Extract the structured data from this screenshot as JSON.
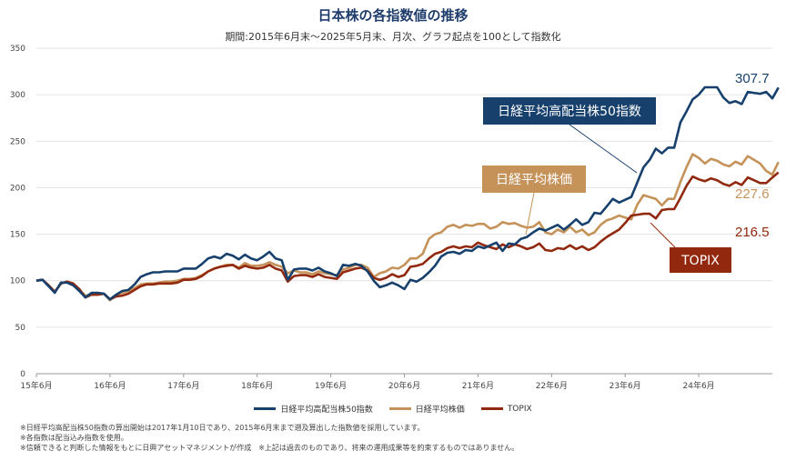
{
  "chart_data": {
    "type": "line",
    "title": "日本株の各指数値の推移",
    "subtitle": "期間:2015年6月末～2025年5月末、月次、グラフ起点を100として指数化",
    "ylim": [
      0,
      350
    ],
    "yticks": [
      0,
      50,
      100,
      150,
      200,
      250,
      300,
      350
    ],
    "xlim": [
      0,
      120
    ],
    "xticks": [
      {
        "pos": 0,
        "label": "15年6月"
      },
      {
        "pos": 12,
        "label": "16年6月"
      },
      {
        "pos": 24,
        "label": "17年6月"
      },
      {
        "pos": 36,
        "label": "18年6月"
      },
      {
        "pos": 48,
        "label": "19年6月"
      },
      {
        "pos": 60,
        "label": "20年6月"
      },
      {
        "pos": 72,
        "label": "21年6月"
      },
      {
        "pos": 84,
        "label": "22年6月"
      },
      {
        "pos": 96,
        "label": "23年6月"
      },
      {
        "pos": 108,
        "label": "24年6月"
      }
    ],
    "series": [
      {
        "name": "日経平均高配当株50指数",
        "color": "#17406d",
        "end_label": "307.7",
        "callout": "日経平均高配当株50指数",
        "values": [
          100,
          101,
          94,
          87,
          98,
          98,
          95,
          89,
          82,
          87,
          87,
          86,
          80,
          85,
          89,
          90,
          96,
          104,
          107,
          109,
          109,
          110,
          110,
          110,
          113,
          113,
          113,
          118,
          124,
          126,
          124,
          129,
          127,
          123,
          128,
          124,
          122,
          126,
          131,
          124,
          122,
          101,
          112,
          113,
          113,
          111,
          114,
          110,
          108,
          105,
          117,
          116,
          118,
          116,
          110,
          100,
          93,
          95,
          98,
          95,
          91,
          101,
          99,
          103,
          109,
          116,
          126,
          130,
          131,
          129,
          133,
          132,
          137,
          135,
          138,
          141,
          132,
          140,
          139,
          145,
          147,
          152,
          156,
          154,
          157,
          160,
          155,
          160,
          166,
          160,
          163,
          173,
          172,
          180,
          188,
          184,
          187,
          190,
          206,
          222,
          230,
          242,
          237,
          243,
          243,
          270,
          282,
          295,
          300,
          308,
          308,
          308,
          297,
          291,
          293,
          290,
          303,
          302,
          301,
          303,
          296,
          307.7
        ]
      },
      {
        "name": "日経平均株価",
        "color": "#c5935a",
        "end_label": "227.6",
        "callout": "日経平均株価",
        "values": [
          100,
          101,
          95,
          88,
          97,
          99,
          96,
          90,
          84,
          85,
          85,
          86,
          79,
          85,
          87,
          89,
          92,
          96,
          97,
          97,
          98,
          99,
          99,
          100,
          102,
          102,
          103,
          106,
          110,
          113,
          115,
          117,
          117,
          114,
          119,
          116,
          116,
          117,
          120,
          117,
          115,
          108,
          111,
          109,
          109,
          107,
          110,
          108,
          107,
          106,
          112,
          114,
          117,
          117,
          114,
          104,
          108,
          110,
          114,
          113,
          117,
          124,
          124,
          129,
          145,
          150,
          152,
          158,
          160,
          157,
          160,
          159,
          161,
          161,
          156,
          158,
          163,
          161,
          162,
          159,
          157,
          158,
          163,
          152,
          150,
          155,
          152,
          158,
          152,
          155,
          149,
          152,
          160,
          165,
          167,
          170,
          168,
          166,
          182,
          192,
          190,
          188,
          181,
          188,
          188,
          206,
          222,
          236,
          232,
          226,
          231,
          229,
          225,
          223,
          228,
          225,
          234,
          230,
          226,
          218,
          214,
          227.6
        ]
      },
      {
        "name": "TOPIX",
        "color": "#92290e",
        "end_label": "216.5",
        "callout": "TOPIX",
        "values": [
          100,
          101,
          95,
          88,
          97,
          99,
          97,
          91,
          82,
          85,
          85,
          86,
          80,
          83,
          84,
          86,
          90,
          94,
          96,
          96,
          97,
          97,
          97,
          98,
          101,
          101,
          102,
          105,
          110,
          113,
          115,
          116,
          117,
          113,
          116,
          114,
          113,
          114,
          117,
          113,
          111,
          99,
          105,
          106,
          106,
          104,
          107,
          104,
          103,
          102,
          109,
          111,
          113,
          114,
          111,
          103,
          101,
          103,
          107,
          104,
          106,
          115,
          116,
          118,
          124,
          129,
          131,
          135,
          137,
          135,
          137,
          136,
          141,
          138,
          136,
          134,
          139,
          136,
          139,
          137,
          134,
          136,
          140,
          133,
          132,
          135,
          134,
          138,
          134,
          137,
          133,
          136,
          142,
          147,
          151,
          155,
          162,
          170,
          171,
          172,
          172,
          167,
          176,
          177,
          177,
          189,
          202,
          212,
          209,
          207,
          210,
          208,
          204,
          202,
          206,
          203,
          211,
          208,
          205,
          205,
          211,
          216.5
        ]
      }
    ],
    "notes": [
      "※日経平均高配当株50指数の算出開始は2017年1月10日であり、2015年6月末まで遡及算出した指数値を採用しています。",
      "※各指数は配当込み指数を使用。",
      "※信頼できると判断した情報をもとに日興アセットマネジメントが作成　※上記は過去のものであり、将来の運用成果等を約束するものではありません。"
    ]
  }
}
